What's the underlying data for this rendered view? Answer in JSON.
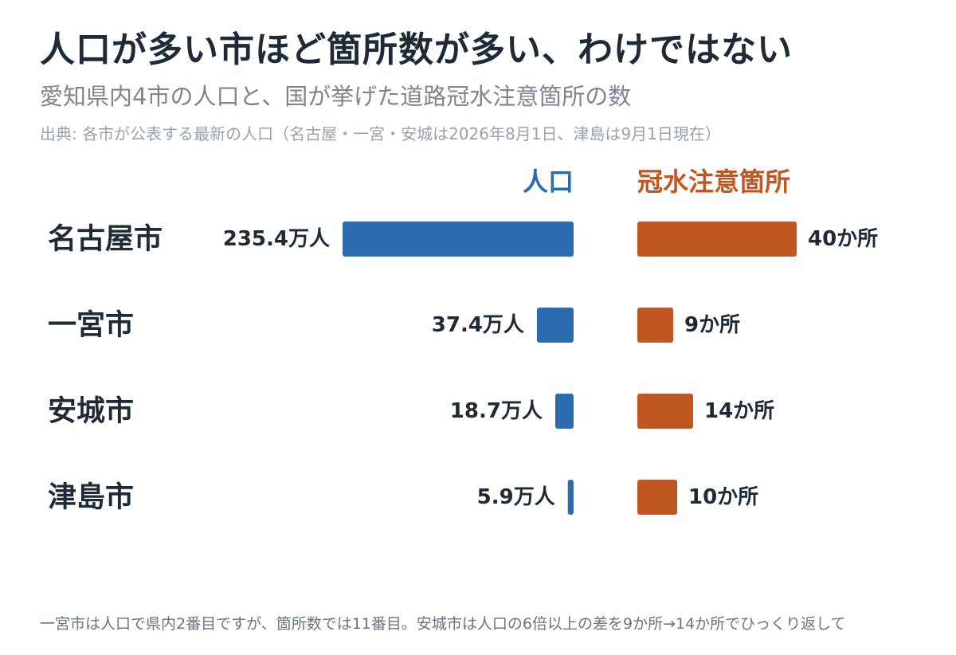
{
  "title": "人口が多い市ほど箇所数が多い、わけではない",
  "subtitle": "愛知県内4市の人口と、国が挙げた道路冠水注意箇所の数",
  "source": "出典: 各市が公表する最新の人口（名古屋・一宮・安城は2026年8月1日、津島は9月1日現在）",
  "footnote": "一宮市は人口で県内2番目ですが、箇所数では11番目。安城市は人口の6倍以上の差を9か所→14か所でひっくり返して",
  "colors": {
    "population": "#2b6cb0",
    "spots": "#c05621",
    "text": "#1f2a37",
    "muted": "#7c8591"
  },
  "chart_data": {
    "type": "bar",
    "categories": [
      "名古屋市",
      "一宮市",
      "安城市",
      "津島市"
    ],
    "series": [
      {
        "name": "人口",
        "unit": "万人",
        "values": [
          235.4,
          37.4,
          18.7,
          5.9
        ],
        "labels": [
          "235.4万人",
          "37.4万人",
          "18.7万人",
          "5.9万人"
        ]
      },
      {
        "name": "冠水注意箇所",
        "unit": "か所",
        "values": [
          40,
          9,
          14,
          10
        ],
        "labels": [
          "40か所",
          "9か所",
          "14か所",
          "10か所"
        ]
      }
    ]
  }
}
